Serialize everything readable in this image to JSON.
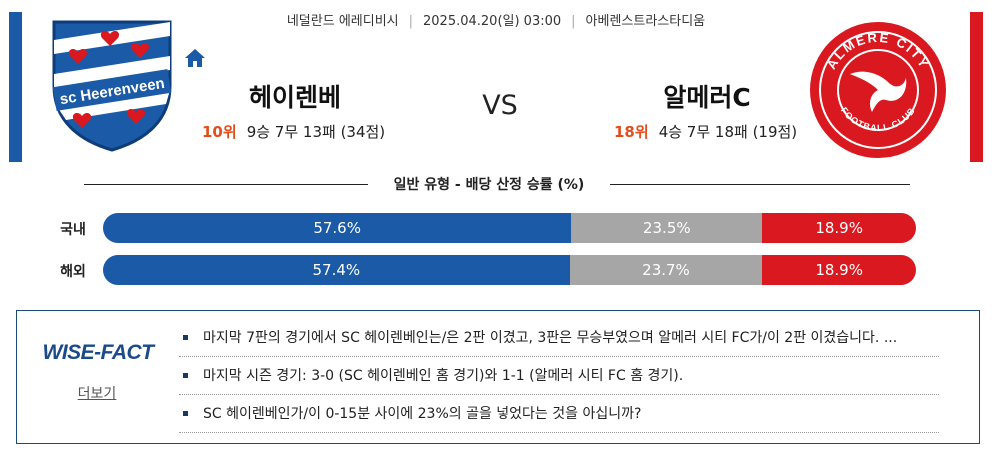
{
  "match": {
    "league": "네덜란드 에레디비시",
    "datetime": "2025.04.20(일) 03:00",
    "venue": "아베렌스트라스타디움",
    "vs": "VS"
  },
  "home": {
    "name": "헤이렌베",
    "rank": "10위",
    "record": "9승 7무 13패 (34점)",
    "logo_text": "sc Heerenveen",
    "color": "#1a5aa6"
  },
  "away": {
    "name": "알메러C",
    "rank": "18위",
    "record": "4승 7무 18패 (19점)",
    "logo_text_top": "ALMERE CITY",
    "logo_text_bottom": "FOOTBALL CLUB",
    "color": "#d9181f"
  },
  "odds_section": {
    "title": "일반 유형 - 배당 산정 승률 (%)",
    "rows": [
      {
        "label": "국내",
        "win": "57.6%",
        "draw": "23.5%",
        "loss": "18.9%",
        "win_frac": 57.6,
        "draw_frac": 23.5,
        "loss_frac": 18.9
      },
      {
        "label": "해외",
        "win": "57.4%",
        "draw": "23.7%",
        "loss": "18.9%",
        "win_frac": 57.4,
        "draw_frac": 23.7,
        "loss_frac": 18.9
      }
    ]
  },
  "wise_fact": {
    "logo": "WISE-FACT",
    "more": "더보기",
    "items": [
      "마지막 7판의 경기에서 SC 헤이렌베인는/은 2판 이겼고, 3판은 무승부였으며 알메러 시티 FC가/이 2판 이겼습니다. ...",
      "마지막 시즌 경기: 3-0 (SC 헤이렌베인 홈 경기)와 1-1 (알메러 시티 FC 홈 경기).",
      "SC 헤이렌베인가/이 0-15분 사이에 23%의 골을 넣었다는 것을 아십니까?"
    ]
  }
}
